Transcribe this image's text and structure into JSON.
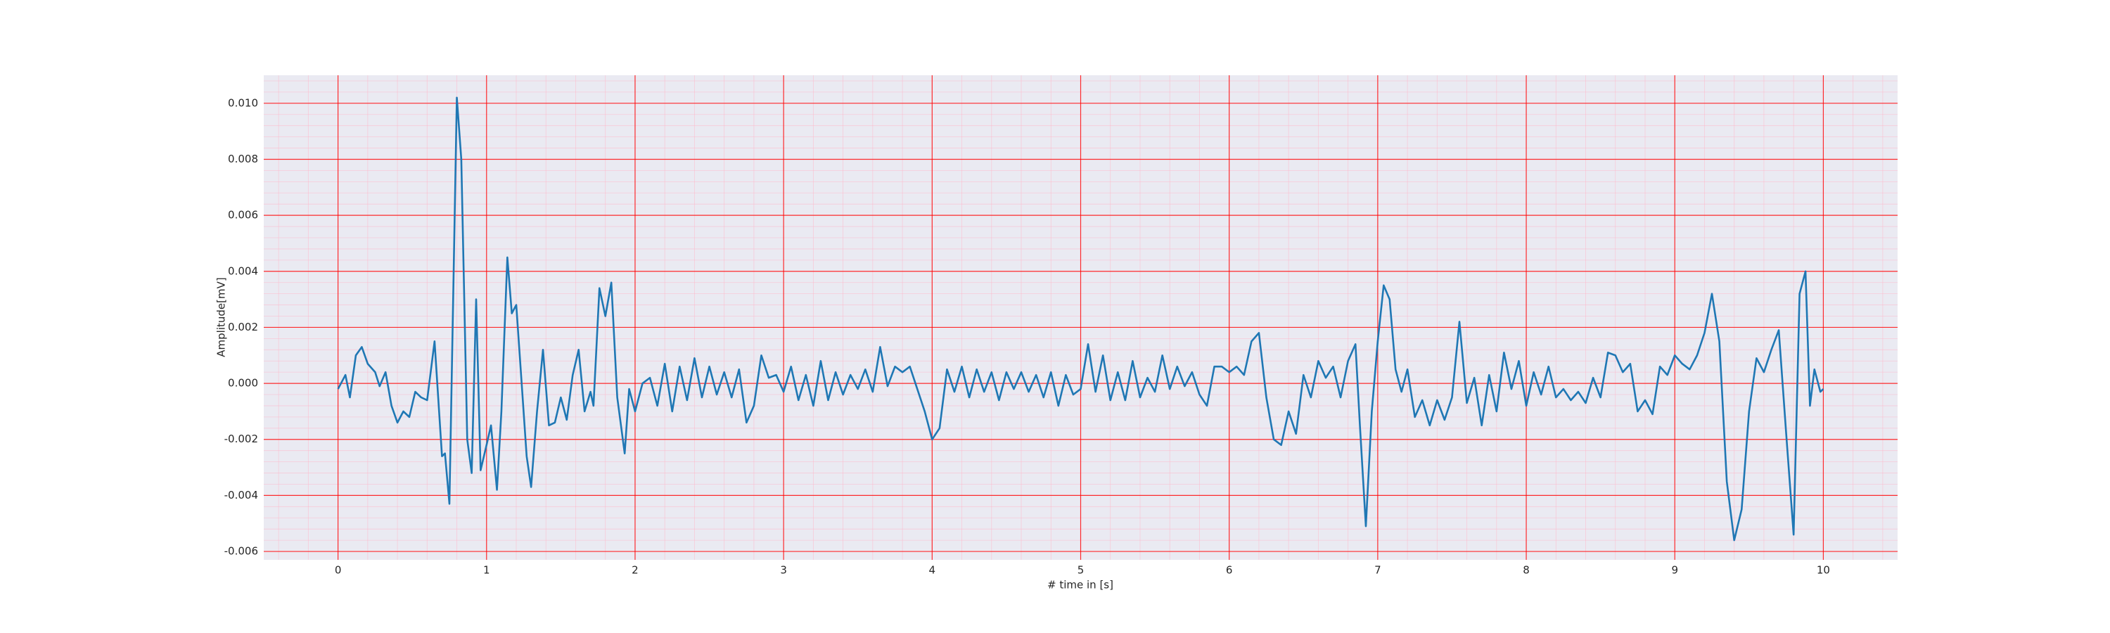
{
  "chart_data": {
    "type": "line",
    "x_label": "# time in [s]",
    "y_label": "Amplitude[mV]",
    "background": "#eaeaf2",
    "grid": true,
    "grid_color": "#ff0000",
    "minor_grid": true,
    "minor_grid_color": "#ffb6c8",
    "xlim": [
      -0.5,
      10.5
    ],
    "ylim": [
      -0.0063,
      0.011
    ],
    "xticks": [
      0,
      1,
      2,
      3,
      4,
      5,
      6,
      7,
      8,
      9,
      10
    ],
    "yticks": [
      {
        "value": -0.006,
        "label": "-0.006"
      },
      {
        "value": -0.004,
        "label": "-0.004"
      },
      {
        "value": -0.002,
        "label": "-0.002"
      },
      {
        "value": 0,
        "label": "0.000"
      },
      {
        "value": 0.002,
        "label": "0.002"
      },
      {
        "value": 0.004,
        "label": "0.004"
      },
      {
        "value": 0.006,
        "label": "0.006"
      },
      {
        "value": 0.008,
        "label": "0.008"
      },
      {
        "value": 0.01,
        "label": "0.010"
      }
    ],
    "series": [
      {
        "color": "#1f77b4",
        "x": [
          0,
          0.05,
          0.08,
          0.12,
          0.16,
          0.2,
          0.25,
          0.28,
          0.32,
          0.36,
          0.4,
          0.44,
          0.48,
          0.52,
          0.56,
          0.6,
          0.65,
          0.7,
          0.72,
          0.75,
          0.8,
          0.83,
          0.87,
          0.9,
          0.93,
          0.96,
          1.0,
          1.03,
          1.07,
          1.1,
          1.14,
          1.17,
          1.2,
          1.23,
          1.27,
          1.3,
          1.34,
          1.38,
          1.42,
          1.46,
          1.5,
          1.54,
          1.58,
          1.62,
          1.66,
          1.7,
          1.72,
          1.76,
          1.8,
          1.84,
          1.88,
          1.93,
          1.96,
          2.0,
          2.05,
          2.1,
          2.15,
          2.2,
          2.25,
          2.3,
          2.35,
          2.4,
          2.45,
          2.5,
          2.55,
          2.6,
          2.65,
          2.7,
          2.75,
          2.8,
          2.85,
          2.9,
          2.95,
          3.0,
          3.05,
          3.1,
          3.15,
          3.2,
          3.25,
          3.3,
          3.35,
          3.4,
          3.45,
          3.5,
          3.55,
          3.6,
          3.65,
          3.7,
          3.75,
          3.8,
          3.85,
          3.9,
          3.95,
          4.0,
          4.05,
          4.1,
          4.15,
          4.2,
          4.25,
          4.3,
          4.35,
          4.4,
          4.45,
          4.5,
          4.55,
          4.6,
          4.65,
          4.7,
          4.75,
          4.8,
          4.85,
          4.9,
          4.95,
          5.0,
          5.05,
          5.1,
          5.15,
          5.2,
          5.25,
          5.3,
          5.35,
          5.4,
          5.45,
          5.5,
          5.55,
          5.6,
          5.65,
          5.7,
          5.75,
          5.8,
          5.85,
          5.9,
          5.95,
          6.0,
          6.05,
          6.1,
          6.15,
          6.2,
          6.25,
          6.3,
          6.35,
          6.4,
          6.45,
          6.5,
          6.55,
          6.6,
          6.65,
          6.7,
          6.75,
          6.8,
          6.85,
          6.88,
          6.92,
          6.96,
          7.0,
          7.04,
          7.08,
          7.12,
          7.16,
          7.2,
          7.25,
          7.3,
          7.35,
          7.4,
          7.45,
          7.5,
          7.55,
          7.6,
          7.65,
          7.7,
          7.75,
          7.8,
          7.85,
          7.9,
          7.95,
          8.0,
          8.05,
          8.1,
          8.15,
          8.2,
          8.25,
          8.3,
          8.35,
          8.4,
          8.45,
          8.5,
          8.55,
          8.6,
          8.65,
          8.7,
          8.75,
          8.8,
          8.85,
          8.9,
          8.95,
          9.0,
          9.05,
          9.1,
          9.15,
          9.2,
          9.25,
          9.3,
          9.35,
          9.4,
          9.45,
          9.5,
          9.55,
          9.6,
          9.65,
          9.7,
          9.75,
          9.8,
          9.84,
          9.88,
          9.91,
          9.94,
          9.98,
          10.0
        ],
        "values": [
          -0.0002,
          0.0003,
          -0.0005,
          0.001,
          0.0013,
          0.0007,
          0.0004,
          -0.0001,
          0.0004,
          -0.0008,
          -0.0014,
          -0.001,
          -0.0012,
          -0.0003,
          -0.0005,
          -0.0006,
          0.0015,
          -0.0026,
          -0.0025,
          -0.0043,
          0.0102,
          0.008,
          -0.002,
          -0.0032,
          0.003,
          -0.0031,
          -0.0022,
          -0.0015,
          -0.0038,
          -0.001,
          0.0045,
          0.0025,
          0.0028,
          0.0005,
          -0.0026,
          -0.0037,
          -0.001,
          0.0012,
          -0.0015,
          -0.0014,
          -0.0005,
          -0.0013,
          0.0003,
          0.0012,
          -0.001,
          -0.0003,
          -0.0008,
          0.0034,
          0.0024,
          0.0036,
          -0.0005,
          -0.0025,
          -0.0002,
          -0.001,
          0,
          0.0002,
          -0.0008,
          0.0007,
          -0.001,
          0.0006,
          -0.0006,
          0.0009,
          -0.0005,
          0.0006,
          -0.0004,
          0.0004,
          -0.0005,
          0.0005,
          -0.0014,
          -0.0008,
          0.001,
          0.0002,
          0.0003,
          -0.0003,
          0.0006,
          -0.0006,
          0.0003,
          -0.0008,
          0.0008,
          -0.0006,
          0.0004,
          -0.0004,
          0.0003,
          -0.0002,
          0.0005,
          -0.0003,
          0.0013,
          -0.0001,
          0.0006,
          0.0004,
          0.0006,
          -0.0002,
          -0.001,
          -0.002,
          -0.0016,
          0.0005,
          -0.0003,
          0.0006,
          -0.0005,
          0.0005,
          -0.0003,
          0.0004,
          -0.0006,
          0.0004,
          -0.0002,
          0.0004,
          -0.0003,
          0.0003,
          -0.0005,
          0.0004,
          -0.0008,
          0.0003,
          -0.0004,
          -0.0002,
          0.0014,
          -0.0003,
          0.001,
          -0.0006,
          0.0004,
          -0.0006,
          0.0008,
          -0.0005,
          0.0002,
          -0.0003,
          0.001,
          -0.0002,
          0.0006,
          -0.0001,
          0.0004,
          -0.0004,
          -0.0008,
          0.0006,
          0.0006,
          0.0004,
          0.0006,
          0.0003,
          0.0015,
          0.0018,
          -0.0005,
          -0.002,
          -0.0022,
          -0.001,
          -0.0018,
          0.0003,
          -0.0005,
          0.0008,
          0.0002,
          0.0006,
          -0.0005,
          0.0008,
          0.0014,
          -0.0015,
          -0.0051,
          -0.001,
          0.0015,
          0.0035,
          0.003,
          0.0005,
          -0.0003,
          0.0005,
          -0.0012,
          -0.0006,
          -0.0015,
          -0.0006,
          -0.0013,
          -0.0005,
          0.0022,
          -0.0007,
          0.0002,
          -0.0015,
          0.0003,
          -0.001,
          0.0011,
          -0.0002,
          0.0008,
          -0.0008,
          0.0004,
          -0.0004,
          0.0006,
          -0.0005,
          -0.0002,
          -0.0006,
          -0.0003,
          -0.0007,
          0.0002,
          -0.0005,
          0.0011,
          0.001,
          0.0004,
          0.0007,
          -0.001,
          -0.0006,
          -0.0011,
          0.0006,
          0.0003,
          0.001,
          0.0007,
          0.0005,
          0.001,
          0.0018,
          0.0032,
          0.0015,
          -0.0035,
          -0.0056,
          -0.0045,
          -0.001,
          0.0009,
          0.0004,
          0.0012,
          0.0019,
          -0.0018,
          -0.0054,
          0.0032,
          0.004,
          -0.0008,
          0.0005,
          -0.0003,
          -0.0002
        ]
      }
    ]
  }
}
